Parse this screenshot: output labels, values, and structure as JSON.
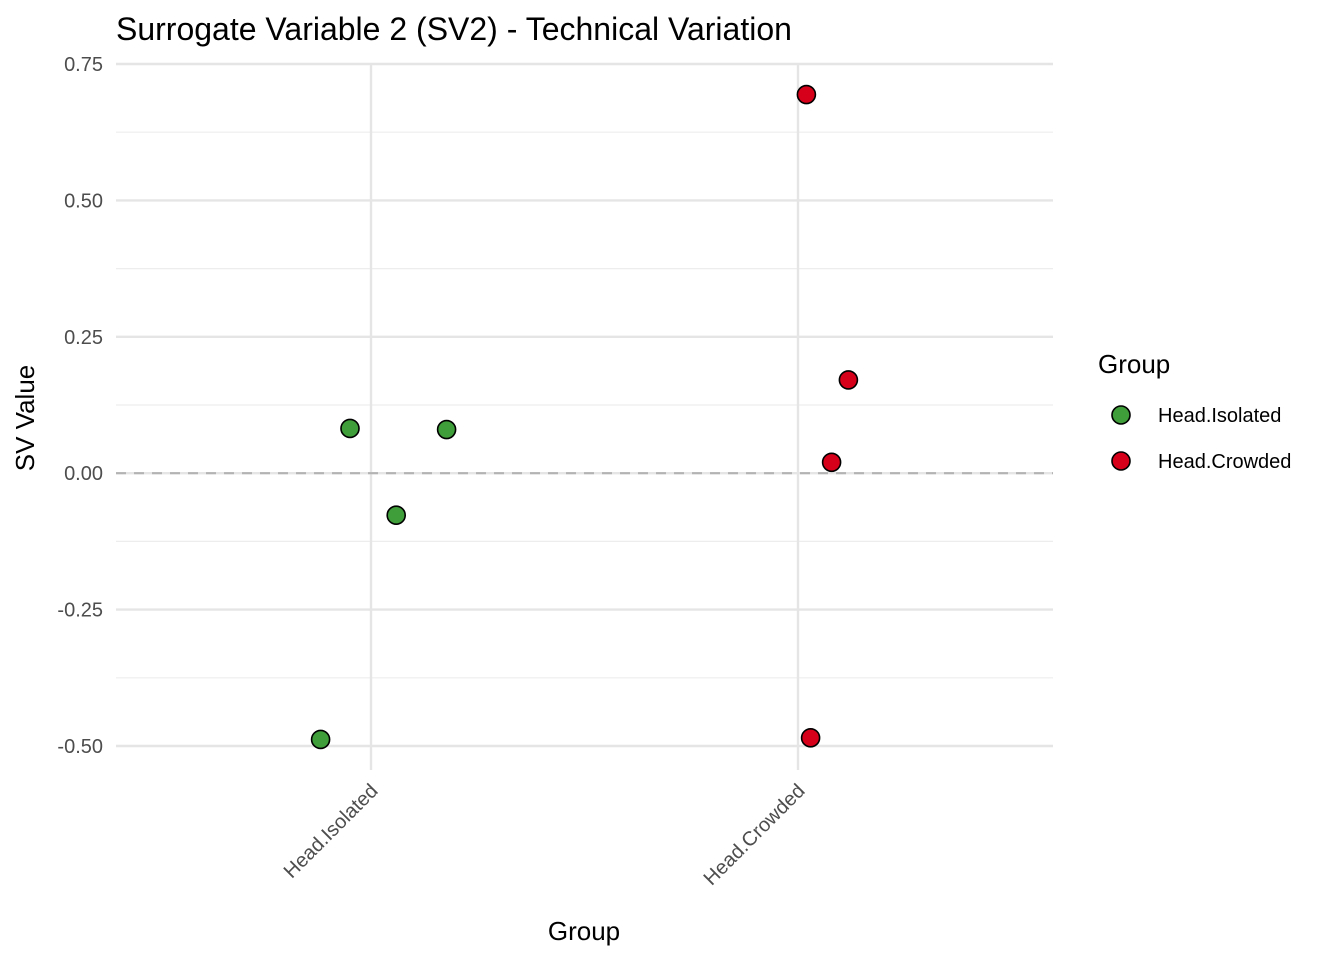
{
  "chart_data": {
    "type": "scatter",
    "title": "Surrogate Variable 2 (SV2) - Technical Variation",
    "xlabel": "Group",
    "ylabel": "SV Value",
    "categories": [
      "Head.Isolated",
      "Head.Crowded"
    ],
    "ylim": [
      -0.55,
      0.75
    ],
    "yticks": [
      -0.5,
      -0.25,
      0.0,
      0.25,
      0.5,
      0.75
    ],
    "ytick_labels": [
      "-0.50",
      "-0.25",
      "0.00",
      "0.25",
      "0.50",
      "0.75"
    ],
    "reference_line": {
      "y": 0,
      "style": "dashed"
    },
    "legend": {
      "title": "Group",
      "position": "right"
    },
    "series": [
      {
        "name": "Head.Isolated",
        "color": "#3f9d3a",
        "points": [
          {
            "x": "Head.Isolated",
            "jitter": -0.12,
            "y": -0.488
          },
          {
            "x": "Head.Isolated",
            "jitter": -0.05,
            "y": 0.082
          },
          {
            "x": "Head.Isolated",
            "jitter": 0.06,
            "y": -0.077
          },
          {
            "x": "Head.Isolated",
            "jitter": 0.18,
            "y": 0.08
          }
        ]
      },
      {
        "name": "Head.Crowded",
        "color": "#d7001a",
        "points": [
          {
            "x": "Head.Crowded",
            "jitter": 0.02,
            "y": 0.694
          },
          {
            "x": "Head.Crowded",
            "jitter": 0.12,
            "y": 0.171
          },
          {
            "x": "Head.Crowded",
            "jitter": 0.08,
            "y": 0.02
          },
          {
            "x": "Head.Crowded",
            "jitter": 0.03,
            "y": -0.485
          }
        ]
      }
    ]
  }
}
